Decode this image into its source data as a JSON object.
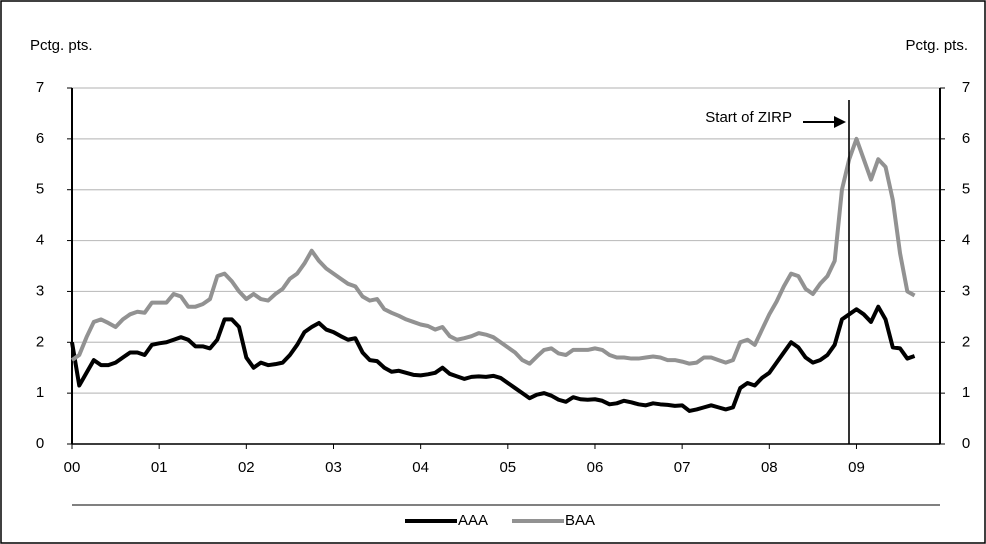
{
  "chart_data": {
    "type": "line",
    "y_label": "Pctg. pts.",
    "y2_label": "Pctg. pts.",
    "annotation": "Start of ZIRP",
    "categories": [
      "00",
      null,
      null,
      null,
      null,
      null,
      null,
      null,
      null,
      null,
      null,
      null,
      "01",
      null,
      null,
      null,
      null,
      null,
      null,
      null,
      null,
      null,
      null,
      null,
      "02",
      null,
      null,
      null,
      null,
      null,
      null,
      null,
      null,
      null,
      null,
      null,
      "03",
      null,
      null,
      null,
      null,
      null,
      null,
      null,
      null,
      null,
      null,
      null,
      "04",
      null,
      null,
      null,
      null,
      null,
      null,
      null,
      null,
      null,
      null,
      null,
      "05",
      null,
      null,
      null,
      null,
      null,
      null,
      null,
      null,
      null,
      null,
      null,
      "06",
      null,
      null,
      null,
      null,
      null,
      null,
      null,
      null,
      null,
      null,
      null,
      "07",
      null,
      null,
      null,
      null,
      null,
      null,
      null,
      null,
      null,
      null,
      null,
      "08",
      null,
      null,
      null,
      null,
      null,
      null,
      null,
      null,
      null,
      null,
      null,
      "09",
      null,
      null,
      null,
      null,
      null,
      null,
      null,
      null
    ],
    "series": [
      {
        "name": "AAA",
        "color": "#000000",
        "values": [
          2.0,
          1.15,
          1.4,
          1.65,
          1.55,
          1.55,
          1.6,
          1.7,
          1.8,
          1.8,
          1.75,
          1.95,
          1.98,
          2.0,
          2.05,
          2.1,
          2.05,
          1.92,
          1.92,
          1.88,
          2.05,
          2.45,
          2.45,
          2.3,
          1.7,
          1.5,
          1.6,
          1.55,
          1.57,
          1.6,
          1.75,
          1.95,
          2.2,
          2.3,
          2.38,
          2.25,
          2.2,
          2.12,
          2.05,
          2.08,
          1.8,
          1.65,
          1.63,
          1.5,
          1.42,
          1.44,
          1.4,
          1.36,
          1.35,
          1.37,
          1.4,
          1.5,
          1.38,
          1.33,
          1.28,
          1.32,
          1.33,
          1.32,
          1.34,
          1.3,
          1.2,
          1.1,
          1.0,
          0.9,
          0.97,
          1.0,
          0.95,
          0.87,
          0.83,
          0.92,
          0.88,
          0.87,
          0.88,
          0.85,
          0.78,
          0.8,
          0.85,
          0.82,
          0.78,
          0.76,
          0.8,
          0.78,
          0.77,
          0.75,
          0.76,
          0.65,
          0.68,
          0.72,
          0.76,
          0.72,
          0.68,
          0.72,
          1.1,
          1.2,
          1.15,
          1.3,
          1.4,
          1.6,
          1.8,
          2.0,
          1.9,
          1.7,
          1.6,
          1.65,
          1.75,
          1.95,
          2.45,
          2.55,
          2.65,
          2.55,
          2.4,
          2.7,
          2.45,
          1.9,
          1.88,
          1.68,
          1.73
        ]
      },
      {
        "name": "BAA",
        "color": "#929292",
        "values": [
          1.65,
          1.75,
          2.1,
          2.4,
          2.45,
          2.38,
          2.3,
          2.45,
          2.55,
          2.6,
          2.58,
          2.78,
          2.78,
          2.78,
          2.95,
          2.9,
          2.7,
          2.7,
          2.75,
          2.85,
          3.3,
          3.35,
          3.2,
          3.0,
          2.85,
          2.95,
          2.85,
          2.82,
          2.95,
          3.05,
          3.25,
          3.35,
          3.55,
          3.8,
          3.6,
          3.45,
          3.35,
          3.25,
          3.15,
          3.1,
          2.9,
          2.82,
          2.85,
          2.65,
          2.58,
          2.52,
          2.45,
          2.4,
          2.35,
          2.32,
          2.25,
          2.3,
          2.12,
          2.05,
          2.08,
          2.12,
          2.18,
          2.15,
          2.1,
          2.0,
          1.9,
          1.8,
          1.65,
          1.58,
          1.72,
          1.85,
          1.88,
          1.78,
          1.75,
          1.85,
          1.85,
          1.85,
          1.88,
          1.85,
          1.75,
          1.7,
          1.7,
          1.68,
          1.68,
          1.7,
          1.72,
          1.7,
          1.65,
          1.65,
          1.62,
          1.58,
          1.6,
          1.7,
          1.7,
          1.65,
          1.6,
          1.65,
          2.0,
          2.05,
          1.95,
          2.25,
          2.55,
          2.8,
          3.1,
          3.35,
          3.3,
          3.05,
          2.95,
          3.15,
          3.3,
          3.6,
          5.0,
          5.6,
          6.0,
          5.6,
          5.2,
          5.6,
          5.45,
          4.8,
          3.75,
          3.0,
          2.92
        ]
      }
    ],
    "ylim": [
      0,
      7
    ],
    "yticks": [
      0,
      1,
      2,
      3,
      4,
      5,
      6,
      7
    ],
    "y2lim": [
      0,
      7
    ],
    "y2ticks": [
      0,
      1,
      2,
      3,
      4,
      5,
      6,
      7
    ],
    "grid": true,
    "legend": "bottom"
  }
}
